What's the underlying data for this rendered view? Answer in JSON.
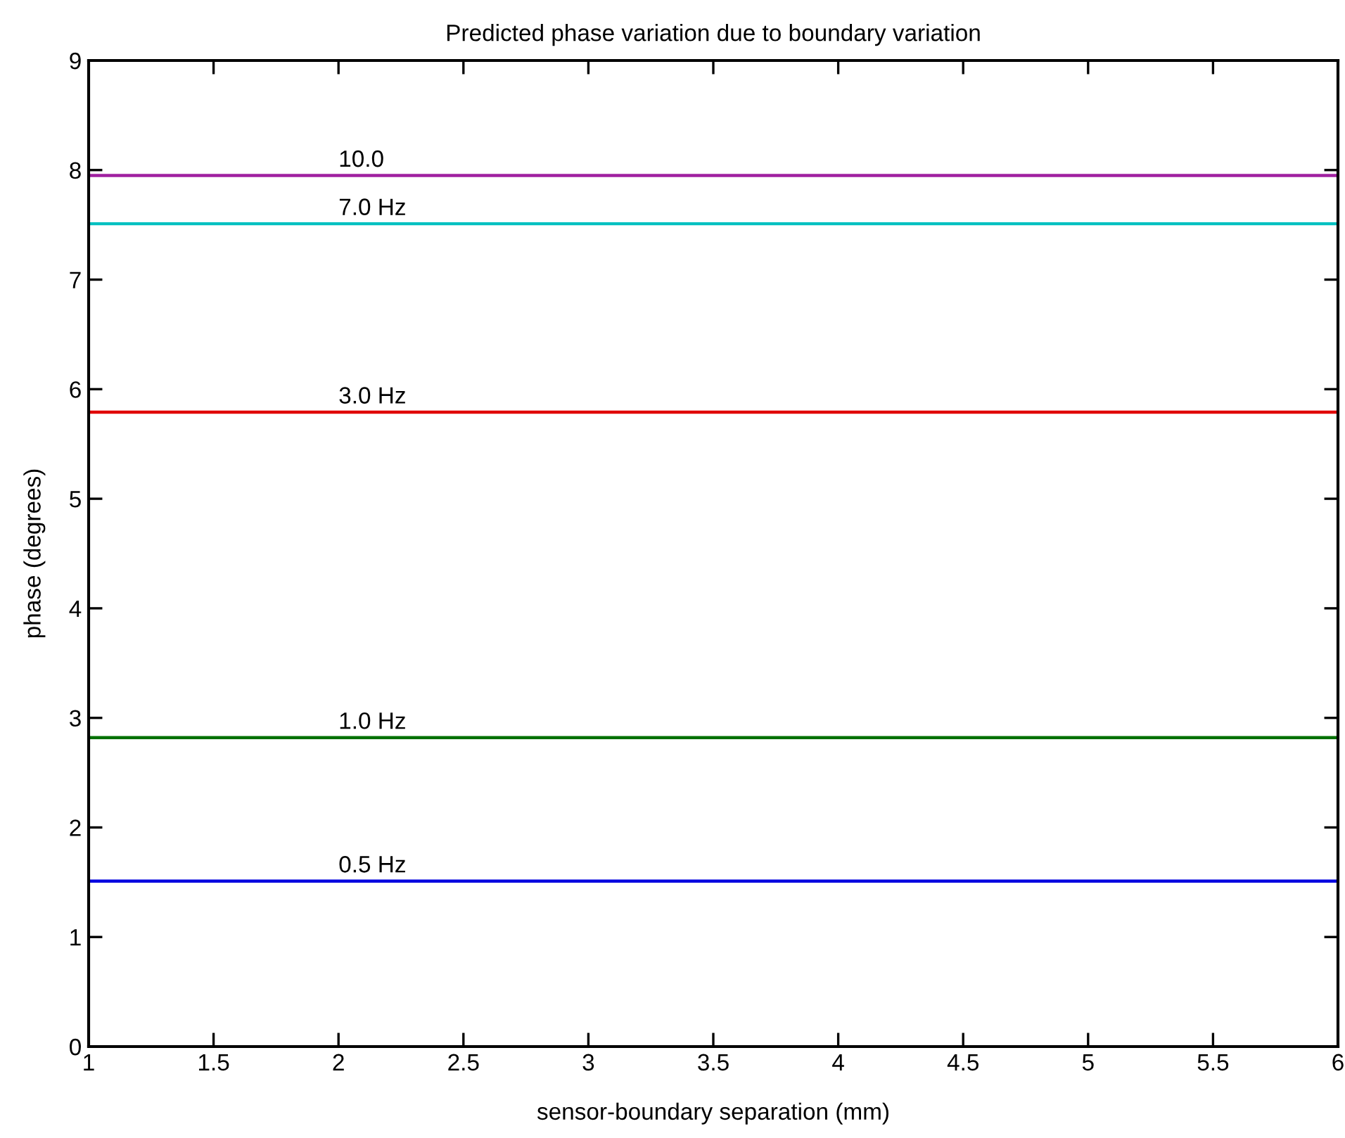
{
  "chart_data": {
    "type": "line",
    "title": "Predicted phase variation due to boundary variation",
    "xlabel": "sensor-boundary separation (mm)",
    "ylabel": "phase (degrees)",
    "x": [
      1,
      6
    ],
    "series": [
      {
        "name": "10.0",
        "color": "#a020a0",
        "values": [
          7.95,
          7.95
        ]
      },
      {
        "name": "7.0 Hz",
        "color": "#00c0c0",
        "values": [
          7.51,
          7.51
        ]
      },
      {
        "name": "3.0 Hz",
        "color": "#e00000",
        "values": [
          5.79,
          5.79
        ]
      },
      {
        "name": "1.0 Hz",
        "color": "#007000",
        "values": [
          2.82,
          2.82
        ]
      },
      {
        "name": "0.5 Hz",
        "color": "#0000e0",
        "values": [
          1.51,
          1.51
        ]
      }
    ],
    "xlim": [
      1,
      6
    ],
    "ylim": [
      0,
      9
    ],
    "xticks": [
      1,
      1.5,
      2,
      2.5,
      3,
      3.5,
      4,
      4.5,
      5,
      5.5,
      6
    ],
    "yticks": [
      0,
      1,
      2,
      3,
      4,
      5,
      6,
      7,
      8,
      9
    ],
    "grid": false,
    "legend": false,
    "marker": "none",
    "line_style": "solid"
  }
}
